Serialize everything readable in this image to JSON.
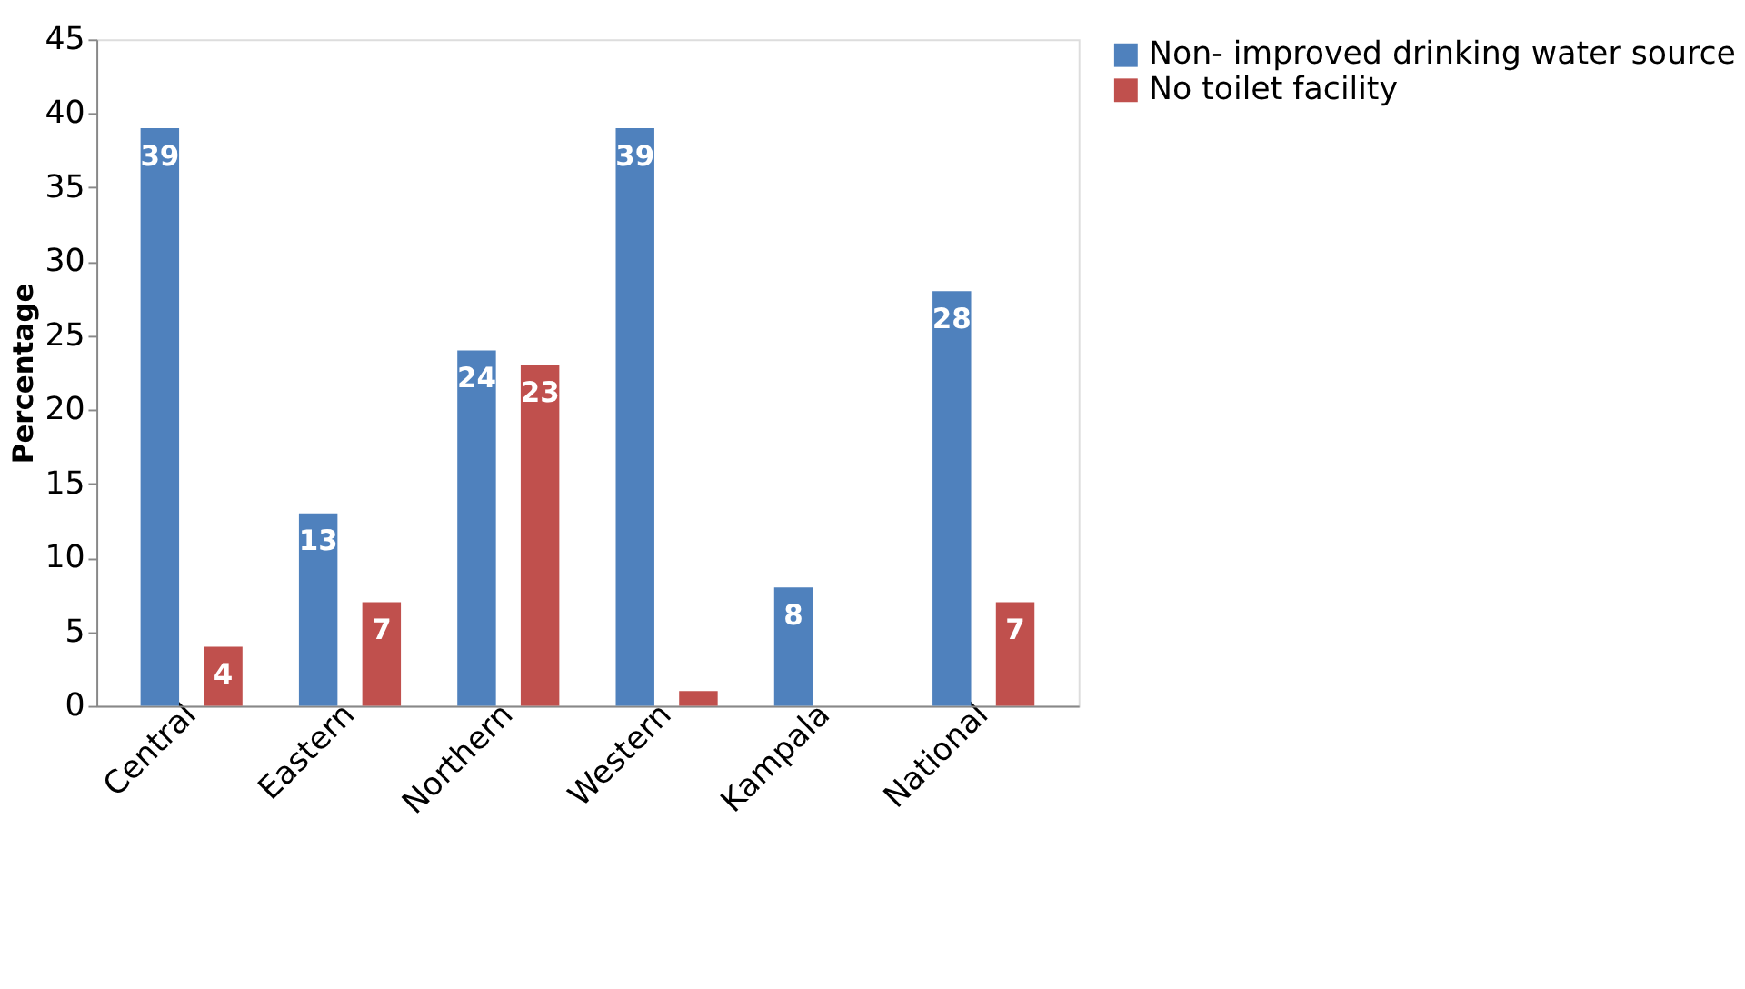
{
  "chart_data": {
    "type": "bar",
    "ylabel": "Percentage",
    "categories": [
      "Central",
      "Eastern",
      "Northern",
      "Western",
      "Kampala",
      "National"
    ],
    "series": [
      {
        "name": "Non- improved drinking water source",
        "color": "#4f81bd",
        "values": [
          39,
          13,
          24,
          39,
          8,
          28
        ],
        "value_labels": [
          "39",
          "13",
          "24",
          "39",
          "8",
          "28"
        ]
      },
      {
        "name": "No toilet facility",
        "color": "#c0504d",
        "values": [
          4,
          7,
          23,
          1,
          null,
          7
        ],
        "value_labels": [
          "4",
          "7",
          "23",
          null,
          null,
          "7"
        ]
      }
    ],
    "ylim": [
      0,
      45
    ],
    "yticks": [
      0,
      5,
      10,
      15,
      20,
      25,
      30,
      35,
      40,
      45
    ],
    "grid": false,
    "legend": "right"
  }
}
